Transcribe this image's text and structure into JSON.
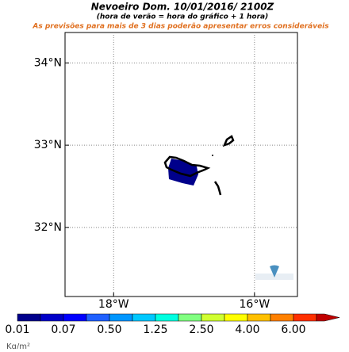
{
  "header": {
    "title": "Nevoeiro  Dom. 10/01/2016/ 2100Z",
    "subtitle": "(hora de verão = hora do gráfico + 1 hora)",
    "warning": "As previsões para mais de 3 dias poderão apresentar erros consideráveis"
  },
  "map": {
    "xlim": [
      -18.69,
      -15.39
    ],
    "ylim": [
      31.16,
      34.37
    ],
    "xticks": [
      {
        "value": -18,
        "label": "18°W"
      },
      {
        "value": -16,
        "label": "16°W"
      }
    ],
    "yticks": [
      {
        "value": 34,
        "label": "34°N"
      },
      {
        "value": 33,
        "label": "33°N"
      },
      {
        "value": 32,
        "label": "32°N"
      }
    ]
  },
  "colorbar": {
    "labels": [
      "0.01",
      "0.07",
      "0.50",
      "1.25",
      "2.50",
      "4.00",
      "6.00"
    ],
    "colors": [
      "#00008b",
      "#0000c8",
      "#0000ff",
      "#2060ff",
      "#0096ff",
      "#00c8ff",
      "#00ffe0",
      "#80ff80",
      "#d0ff30",
      "#ffff00",
      "#ffc000",
      "#ff8000",
      "#ff3000",
      "#c00000"
    ],
    "unit": "Kg/m²"
  }
}
